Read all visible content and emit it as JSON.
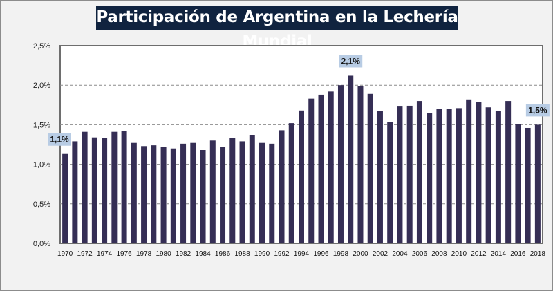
{
  "chart_data": {
    "type": "bar",
    "title": "Participación de Argentina en la Lechería Mundial",
    "xlabel": "",
    "ylabel": "",
    "ylim": [
      0,
      2.5
    ],
    "y_ticks": [
      "0,0%",
      "0,5%",
      "1,0%",
      "1,5%",
      "2,0%",
      "2,5%"
    ],
    "y_tick_values": [
      0,
      0.5,
      1.0,
      1.5,
      2.0,
      2.5
    ],
    "grid": "horizontal dashed",
    "categories": [
      1970,
      1971,
      1972,
      1973,
      1974,
      1975,
      1976,
      1977,
      1978,
      1979,
      1980,
      1981,
      1982,
      1983,
      1984,
      1985,
      1986,
      1987,
      1988,
      1989,
      1990,
      1991,
      1992,
      1993,
      1994,
      1995,
      1996,
      1997,
      1998,
      1999,
      2000,
      2001,
      2002,
      2003,
      2004,
      2005,
      2006,
      2007,
      2008,
      2009,
      2010,
      2011,
      2012,
      2013,
      2014,
      2015,
      2016,
      2017,
      2018
    ],
    "x_tick_labels": [
      "1970",
      "1972",
      "1974",
      "1976",
      "1978",
      "1980",
      "1982",
      "1984",
      "1986",
      "1988",
      "1990",
      "1992",
      "1994",
      "1996",
      "1998",
      "2000",
      "2002",
      "2004",
      "2006",
      "2008",
      "2010",
      "2012",
      "2014",
      "2016",
      "2018"
    ],
    "values": [
      1.13,
      1.29,
      1.41,
      1.34,
      1.33,
      1.41,
      1.42,
      1.27,
      1.23,
      1.24,
      1.22,
      1.2,
      1.26,
      1.27,
      1.18,
      1.3,
      1.22,
      1.33,
      1.29,
      1.37,
      1.27,
      1.26,
      1.43,
      1.52,
      1.68,
      1.83,
      1.88,
      1.92,
      2.0,
      2.12,
      1.99,
      1.89,
      1.67,
      1.53,
      1.73,
      1.74,
      1.8,
      1.65,
      1.7,
      1.7,
      1.71,
      1.82,
      1.79,
      1.72,
      1.67,
      1.8,
      1.51,
      1.46,
      1.5
    ],
    "unit": "%",
    "data_labels": [
      {
        "year": 1970,
        "text": "1,1%"
      },
      {
        "year": 1999,
        "text": "2,1%"
      },
      {
        "year": 2018,
        "text": "1,5%"
      }
    ],
    "colors": {
      "bar": "#352e55",
      "title_bg": "#10233f",
      "label_bg": "#b8cce4",
      "grid": "#8c8c8c"
    }
  }
}
